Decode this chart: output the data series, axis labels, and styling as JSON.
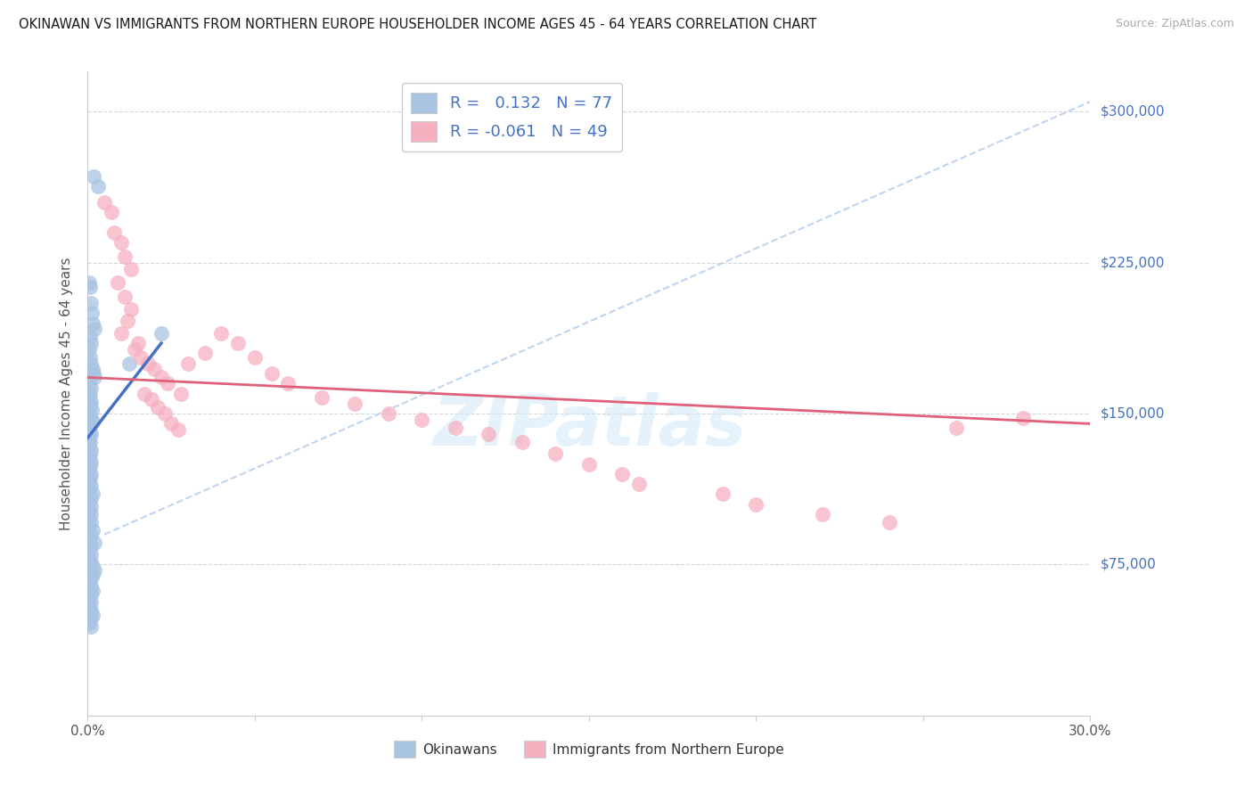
{
  "title": "OKINAWAN VS IMMIGRANTS FROM NORTHERN EUROPE HOUSEHOLDER INCOME AGES 45 - 64 YEARS CORRELATION CHART",
  "source": "Source: ZipAtlas.com",
  "ylabel": "Householder Income Ages 45 - 64 years",
  "y_tick_labels": [
    "$75,000",
    "$150,000",
    "$225,000",
    "$300,000"
  ],
  "y_tick_values": [
    75000,
    150000,
    225000,
    300000
  ],
  "ylim": [
    0,
    320000
  ],
  "xlim": [
    0.0,
    0.3
  ],
  "x_ticks": [
    0.0,
    0.05,
    0.1,
    0.15,
    0.2,
    0.25,
    0.3
  ],
  "x_tick_labels": [
    "0.0%",
    "",
    "",
    "",
    "",
    "",
    "30.0%"
  ],
  "color_blue": "#a8c4e2",
  "color_blue_dark": "#4472c4",
  "color_pink": "#f5b0c0",
  "color_pink_dark": "#e0607a",
  "color_dashed": "#b8d0ec",
  "watermark_color": "#d0e8f8",
  "grid_color": "#cccccc",
  "right_label_color": "#4472c4",
  "bottom_legend_labels": [
    "Okinawans",
    "Immigrants from Northern Europe"
  ],
  "blue_trend_x": [
    0.0,
    0.022
  ],
  "blue_trend_y": [
    138000,
    185000
  ],
  "pink_trend_x": [
    0.0,
    0.3
  ],
  "pink_trend_y": [
    168000,
    145000
  ],
  "dashed_trend_x": [
    0.005,
    0.3
  ],
  "dashed_trend_y": [
    90000,
    305000
  ],
  "okinawan_x": [
    0.0018,
    0.003,
    0.0005,
    0.0008,
    0.001,
    0.0012,
    0.0015,
    0.002,
    0.0008,
    0.001,
    0.0005,
    0.0008,
    0.001,
    0.0015,
    0.0018,
    0.002,
    0.0005,
    0.001,
    0.0008,
    0.0005,
    0.001,
    0.0008,
    0.0012,
    0.0005,
    0.001,
    0.0015,
    0.0005,
    0.0008,
    0.001,
    0.0005,
    0.0008,
    0.0005,
    0.001,
    0.0008,
    0.0005,
    0.001,
    0.0008,
    0.0005,
    0.001,
    0.0008,
    0.0005,
    0.001,
    0.0005,
    0.0015,
    0.001,
    0.0005,
    0.001,
    0.0005,
    0.001,
    0.0005,
    0.001,
    0.0005,
    0.0015,
    0.001,
    0.0005,
    0.002,
    0.001,
    0.0005,
    0.001,
    0.0005,
    0.001,
    0.0015,
    0.002,
    0.0015,
    0.001,
    0.0005,
    0.001,
    0.0015,
    0.001,
    0.0005,
    0.001,
    0.0005,
    0.001,
    0.0015,
    0.001,
    0.0005,
    0.0125,
    0.022,
    0.001
  ],
  "okinawan_y": [
    268000,
    263000,
    215000,
    213000,
    205000,
    200000,
    195000,
    192000,
    188000,
    185000,
    182000,
    178000,
    175000,
    172000,
    170000,
    168000,
    165000,
    163000,
    160000,
    158000,
    156000,
    154000,
    152000,
    150000,
    148000,
    146000,
    144000,
    142000,
    140000,
    138000,
    136000,
    134000,
    132000,
    130000,
    128000,
    126000,
    124000,
    122000,
    120000,
    118000,
    116000,
    114000,
    112000,
    110000,
    108000,
    106000,
    104000,
    102000,
    100000,
    98000,
    96000,
    94000,
    92000,
    90000,
    88000,
    86000,
    84000,
    82000,
    80000,
    78000,
    76000,
    74000,
    72000,
    70000,
    68000,
    66000,
    64000,
    62000,
    60000,
    58000,
    56000,
    54000,
    52000,
    50000,
    48000,
    46000,
    175000,
    190000,
    44000
  ],
  "immigrants_x": [
    0.005,
    0.007,
    0.008,
    0.01,
    0.011,
    0.013,
    0.009,
    0.011,
    0.013,
    0.012,
    0.01,
    0.015,
    0.014,
    0.016,
    0.018,
    0.02,
    0.022,
    0.024,
    0.017,
    0.019,
    0.021,
    0.023,
    0.025,
    0.027,
    0.028,
    0.03,
    0.035,
    0.04,
    0.045,
    0.05,
    0.055,
    0.06,
    0.07,
    0.08,
    0.09,
    0.1,
    0.11,
    0.12,
    0.13,
    0.14,
    0.15,
    0.16,
    0.165,
    0.19,
    0.2,
    0.22,
    0.24,
    0.26,
    0.28
  ],
  "immigrants_y": [
    255000,
    250000,
    240000,
    235000,
    228000,
    222000,
    215000,
    208000,
    202000,
    196000,
    190000,
    185000,
    182000,
    178000,
    175000,
    172000,
    168000,
    165000,
    160000,
    157000,
    153000,
    150000,
    145000,
    142000,
    160000,
    175000,
    180000,
    190000,
    185000,
    178000,
    170000,
    165000,
    158000,
    155000,
    150000,
    147000,
    143000,
    140000,
    136000,
    130000,
    125000,
    120000,
    115000,
    110000,
    105000,
    100000,
    96000,
    143000,
    148000
  ]
}
